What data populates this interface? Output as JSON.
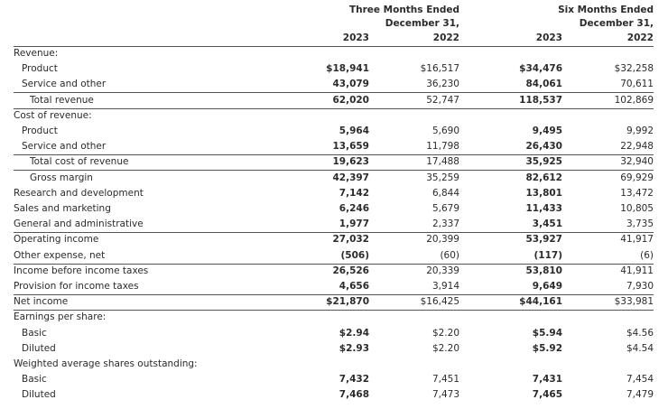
{
  "header": {
    "groups": [
      {
        "line1": "Three Months Ended",
        "line2": "December 31,"
      },
      {
        "line1": "Six Months Ended",
        "line2": "December 31,"
      }
    ],
    "years": [
      "2023",
      "2022",
      "2023",
      "2022"
    ]
  },
  "table": {
    "rows": [
      {
        "label": "Revenue:"
      },
      {
        "label": "Product",
        "values": [
          "$18,941",
          "$16,517",
          "$34,476",
          "$32,258"
        ]
      },
      {
        "label": "Service and other",
        "values": [
          "43,079",
          "36,230",
          "84,061",
          "70,611"
        ]
      },
      {
        "label": "Total revenue",
        "values": [
          "62,020",
          "52,747",
          "118,537",
          "102,869"
        ]
      },
      {
        "label": "Cost of revenue:"
      },
      {
        "label": "Product",
        "values": [
          "5,964",
          "5,690",
          "9,495",
          "9,992"
        ]
      },
      {
        "label": "Service and other",
        "values": [
          "13,659",
          "11,798",
          "26,430",
          "22,948"
        ]
      },
      {
        "label": "Total cost of revenue",
        "values": [
          "19,623",
          "17,488",
          "35,925",
          "32,940"
        ]
      },
      {
        "label": "Gross margin",
        "values": [
          "42,397",
          "35,259",
          "82,612",
          "69,929"
        ]
      },
      {
        "label": "Research and development",
        "values": [
          "7,142",
          "6,844",
          "13,801",
          "13,472"
        ]
      },
      {
        "label": "Sales and marketing",
        "values": [
          "6,246",
          "5,679",
          "11,433",
          "10,805"
        ]
      },
      {
        "label": "General and administrative",
        "values": [
          "1,977",
          "2,337",
          "3,451",
          "3,735"
        ]
      },
      {
        "label": "Operating income",
        "values": [
          "27,032",
          "20,399",
          "53,927",
          "41,917"
        ]
      },
      {
        "label": "Other expense, net",
        "values": [
          "(506)",
          "(60)",
          "(117)",
          "(6)"
        ]
      },
      {
        "label": "Income before income taxes",
        "values": [
          "26,526",
          "20,339",
          "53,810",
          "41,911"
        ]
      },
      {
        "label": "Provision for income taxes",
        "values": [
          "4,656",
          "3,914",
          "9,649",
          "7,930"
        ]
      },
      {
        "label": "Net income",
        "values": [
          "$21,870",
          "$16,425",
          "$44,161",
          "$33,981"
        ]
      },
      {
        "label": "Earnings per share:"
      },
      {
        "label": "Basic",
        "values": [
          "$2.94",
          "$2.20",
          "$5.94",
          "$4.56"
        ]
      },
      {
        "label": "Diluted",
        "values": [
          "$2.93",
          "$2.20",
          "$5.92",
          "$4.54"
        ]
      },
      {
        "label": "Weighted average shares outstanding:"
      },
      {
        "label": "Basic",
        "values": [
          "7,432",
          "7,451",
          "7,431",
          "7,454"
        ]
      },
      {
        "label": "Diluted",
        "values": [
          "7,468",
          "7,473",
          "7,465",
          "7,479"
        ]
      }
    ]
  }
}
